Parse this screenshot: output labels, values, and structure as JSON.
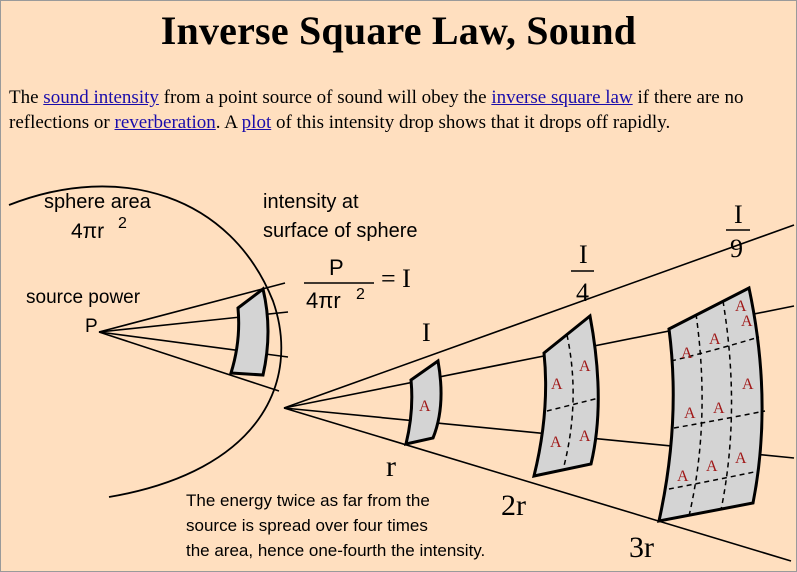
{
  "title": "Inverse Square Law, Sound",
  "intro": {
    "t1": "The ",
    "link_sound_intensity": "sound intensity",
    "t2": " from a point source of sound will obey the ",
    "link_inverse_square_law": "inverse square law",
    "t3": " if there are no reflections or ",
    "link_reverberation": "reverberation",
    "t4": ". A ",
    "link_plot": "plot",
    "t5": " of this intensity drop shows that it drops off rapidly."
  },
  "figure": {
    "sphere_area_label": "sphere area",
    "sphere_area_formula": "4πr",
    "sphere_area_exp": "2",
    "intensity_label_line1": "intensity at",
    "intensity_label_line2": "surface of sphere",
    "formula_numerator": "P",
    "formula_denominator": "4πr",
    "formula_exp": "2",
    "formula_equals": "= I",
    "source_power_label": "source power",
    "source_point": "P",
    "intensity_1": "I",
    "intensity_2_num": "I",
    "intensity_2_den": "4",
    "intensity_3_num": "I",
    "intensity_3_den": "9",
    "area_label": "A",
    "dist_1": "r",
    "dist_2": "2r",
    "dist_3": "3r",
    "caption_line1": "The energy twice as far from the",
    "caption_line2": "source is spread over four times",
    "caption_line3": "the area, hence one-fourth the intensity.",
    "colors": {
      "panel_fill": "#d4d4d4",
      "area_text": "#a01818",
      "link": "#1a0dab",
      "background": "#ffdfbf"
    }
  }
}
